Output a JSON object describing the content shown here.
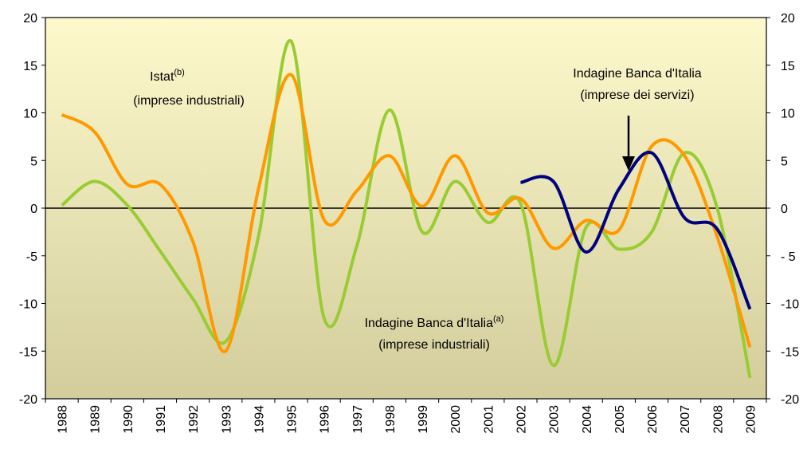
{
  "chart_data": {
    "type": "line",
    "categories": [
      "1988",
      "1989",
      "1990",
      "1991",
      "1992",
      "1993",
      "1994",
      "1995",
      "1996",
      "1997",
      "1998",
      "1999",
      "2000",
      "2001",
      "2002",
      "2003",
      "2004",
      "2005",
      "2006",
      "2007",
      "2008",
      "2009"
    ],
    "series": [
      {
        "color": "#99cc33",
        "values": [
          0.3,
          2.8,
          0.3,
          -4.5,
          -9.5,
          -14,
          -3,
          17.5,
          -11.5,
          -4,
          10.3,
          -2.5,
          2.8,
          -1.5,
          0.5,
          -16.5,
          -2,
          -4.3,
          -2.5,
          5.8,
          0,
          -17.8
        ]
      },
      {
        "color": "#ff9900",
        "values": [
          9.8,
          8,
          2.5,
          2.5,
          -3.5,
          -15,
          2,
          14,
          -1.2,
          1.8,
          5.5,
          0.2,
          5.5,
          -0.5,
          1,
          -4.2,
          -1.3,
          -2.3,
          6.5,
          5.5,
          -3,
          -14.6
        ]
      },
      {
        "color": "#000080",
        "values": [
          null,
          null,
          null,
          null,
          null,
          null,
          null,
          null,
          null,
          null,
          null,
          null,
          null,
          null,
          2.7,
          2.8,
          -4.6,
          2,
          5.8,
          -1,
          -2.2,
          -10.6
        ]
      }
    ],
    "annotations": [
      {
        "text": "Istat",
        "sup": "(b)",
        "line2": "(imprese industriali)"
      },
      {
        "text": "Indagine Banca d'Italia",
        "line2": "(imprese dei servizi)"
      },
      {
        "text": "Indagine Banca d'Italia",
        "sup": "(a)",
        "line2": "(imprese industriali)"
      }
    ],
    "ylim": [
      -20,
      20
    ],
    "yticks": [
      -20,
      -15,
      -10,
      -5,
      0,
      5,
      10,
      15,
      20
    ],
    "y2lim": [
      -20,
      20
    ],
    "y2ticks": [
      -20,
      -15,
      -10,
      {
        "value": -5,
        "label": "- 5"
      },
      0,
      5,
      10,
      15,
      20
    ],
    "grid": false
  }
}
